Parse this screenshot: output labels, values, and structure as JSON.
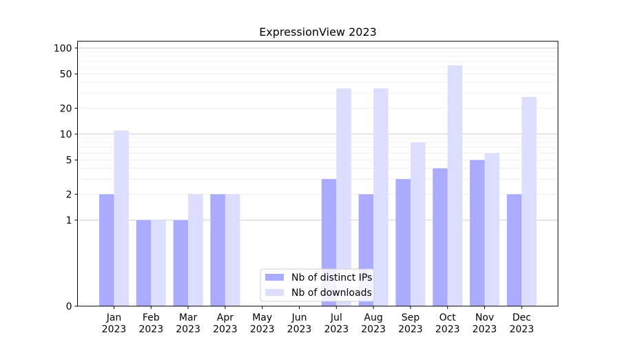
{
  "chart_data": {
    "type": "bar",
    "title": "ExpressionView 2023",
    "xlabel": "",
    "ylabel": "",
    "yscale": "symlog",
    "ylim": [
      0,
      120
    ],
    "y_ticks": [
      0,
      1,
      2,
      5,
      10,
      20,
      50,
      100
    ],
    "y_tick_labels": [
      "0",
      "1",
      "2",
      "5",
      "10",
      "20",
      "50",
      "100"
    ],
    "grid": "y",
    "legend_position": "lower-center",
    "categories": [
      [
        "Jan",
        "2023"
      ],
      [
        "Feb",
        "2023"
      ],
      [
        "Mar",
        "2023"
      ],
      [
        "Apr",
        "2023"
      ],
      [
        "May",
        "2023"
      ],
      [
        "Jun",
        "2023"
      ],
      [
        "Jul",
        "2023"
      ],
      [
        "Aug",
        "2023"
      ],
      [
        "Sep",
        "2023"
      ],
      [
        "Oct",
        "2023"
      ],
      [
        "Nov",
        "2023"
      ],
      [
        "Dec",
        "2023"
      ]
    ],
    "series": [
      {
        "name": "Nb of distinct IPs",
        "color": "#aaaaff",
        "values": [
          2,
          1,
          1,
          2,
          0,
          0,
          3,
          2,
          3,
          4,
          5,
          2
        ]
      },
      {
        "name": "Nb of downloads",
        "color": "#ddddff",
        "values": [
          11,
          1,
          2,
          2,
          0,
          0,
          34,
          34,
          8,
          63,
          6,
          27
        ]
      }
    ]
  }
}
